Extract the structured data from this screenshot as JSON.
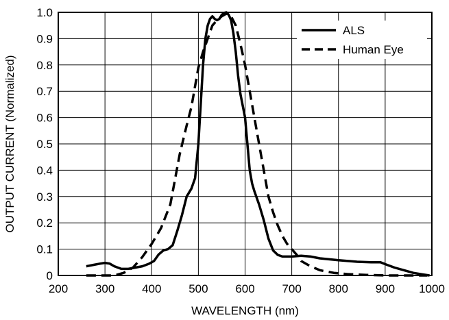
{
  "chart_data": {
    "type": "line",
    "title": "",
    "xlabel": "WAVELENGTH (nm)",
    "ylabel": "OUTPUT CURRENT (Normalized)",
    "xlim": [
      200,
      1000
    ],
    "ylim": [
      0,
      1.0
    ],
    "xticks": [
      200,
      300,
      400,
      500,
      600,
      700,
      800,
      900,
      1000
    ],
    "yticks": [
      0,
      0.1,
      0.2,
      0.3,
      0.4,
      0.5,
      0.6,
      0.7,
      0.8,
      0.9,
      1.0
    ],
    "xtick_labels": [
      "200",
      "300",
      "400",
      "500",
      "600",
      "700",
      "800",
      "900",
      "1000"
    ],
    "ytick_labels": [
      "0",
      "0.1",
      "0.2",
      "0.3",
      "0.4",
      "0.5",
      "0.6",
      "0.7",
      "0.8",
      "0.9",
      "1.0"
    ],
    "grid": true,
    "legend_position": "top-right",
    "series": [
      {
        "name": "ALS",
        "style": "solid",
        "color": "#000000",
        "points": [
          [
            260,
            0.035
          ],
          [
            275,
            0.04
          ],
          [
            290,
            0.045
          ],
          [
            300,
            0.048
          ],
          [
            310,
            0.045
          ],
          [
            320,
            0.035
          ],
          [
            335,
            0.025
          ],
          [
            350,
            0.025
          ],
          [
            365,
            0.03
          ],
          [
            380,
            0.035
          ],
          [
            395,
            0.045
          ],
          [
            405,
            0.055
          ],
          [
            415,
            0.08
          ],
          [
            425,
            0.095
          ],
          [
            435,
            0.1
          ],
          [
            445,
            0.115
          ],
          [
            455,
            0.17
          ],
          [
            465,
            0.23
          ],
          [
            475,
            0.3
          ],
          [
            485,
            0.33
          ],
          [
            493,
            0.37
          ],
          [
            500,
            0.5
          ],
          [
            505,
            0.65
          ],
          [
            510,
            0.8
          ],
          [
            515,
            0.9
          ],
          [
            520,
            0.95
          ],
          [
            525,
            0.975
          ],
          [
            530,
            0.985
          ],
          [
            535,
            0.975
          ],
          [
            540,
            0.97
          ],
          [
            545,
            0.975
          ],
          [
            550,
            0.99
          ],
          [
            555,
            0.998
          ],
          [
            560,
            1.0
          ],
          [
            565,
            0.99
          ],
          [
            570,
            0.97
          ],
          [
            575,
            0.92
          ],
          [
            580,
            0.85
          ],
          [
            585,
            0.76
          ],
          [
            590,
            0.69
          ],
          [
            600,
            0.6
          ],
          [
            605,
            0.5
          ],
          [
            610,
            0.4
          ],
          [
            615,
            0.35
          ],
          [
            620,
            0.32
          ],
          [
            630,
            0.27
          ],
          [
            640,
            0.21
          ],
          [
            650,
            0.14
          ],
          [
            660,
            0.095
          ],
          [
            670,
            0.078
          ],
          [
            680,
            0.072
          ],
          [
            700,
            0.072
          ],
          [
            720,
            0.075
          ],
          [
            740,
            0.072
          ],
          [
            760,
            0.065
          ],
          [
            800,
            0.058
          ],
          [
            840,
            0.052
          ],
          [
            870,
            0.05
          ],
          [
            890,
            0.05
          ],
          [
            900,
            0.043
          ],
          [
            920,
            0.03
          ],
          [
            940,
            0.02
          ],
          [
            960,
            0.01
          ],
          [
            980,
            0.004
          ],
          [
            995,
            0.0
          ]
        ]
      },
      {
        "name": "Human Eye",
        "style": "dashed",
        "color": "#000000",
        "points": [
          [
            260,
            0.0
          ],
          [
            320,
            0.0
          ],
          [
            340,
            0.01
          ],
          [
            360,
            0.03
          ],
          [
            380,
            0.07
          ],
          [
            400,
            0.12
          ],
          [
            420,
            0.18
          ],
          [
            440,
            0.27
          ],
          [
            460,
            0.46
          ],
          [
            475,
            0.57
          ],
          [
            485,
            0.64
          ],
          [
            500,
            0.79
          ],
          [
            510,
            0.85
          ],
          [
            520,
            0.9
          ],
          [
            530,
            0.95
          ],
          [
            540,
            0.97
          ],
          [
            550,
            0.985
          ],
          [
            560,
            0.995
          ],
          [
            570,
            0.985
          ],
          [
            580,
            0.95
          ],
          [
            590,
            0.88
          ],
          [
            600,
            0.8
          ],
          [
            610,
            0.7
          ],
          [
            620,
            0.6
          ],
          [
            630,
            0.5
          ],
          [
            640,
            0.4
          ],
          [
            650,
            0.3
          ],
          [
            660,
            0.24
          ],
          [
            670,
            0.19
          ],
          [
            680,
            0.15
          ],
          [
            690,
            0.12
          ],
          [
            700,
            0.1
          ],
          [
            710,
            0.08
          ],
          [
            720,
            0.055
          ],
          [
            740,
            0.035
          ],
          [
            760,
            0.02
          ],
          [
            790,
            0.01
          ],
          [
            820,
            0.005
          ],
          [
            860,
            0.002
          ],
          [
            900,
            0.0
          ],
          [
            990,
            0.0
          ]
        ]
      }
    ]
  }
}
